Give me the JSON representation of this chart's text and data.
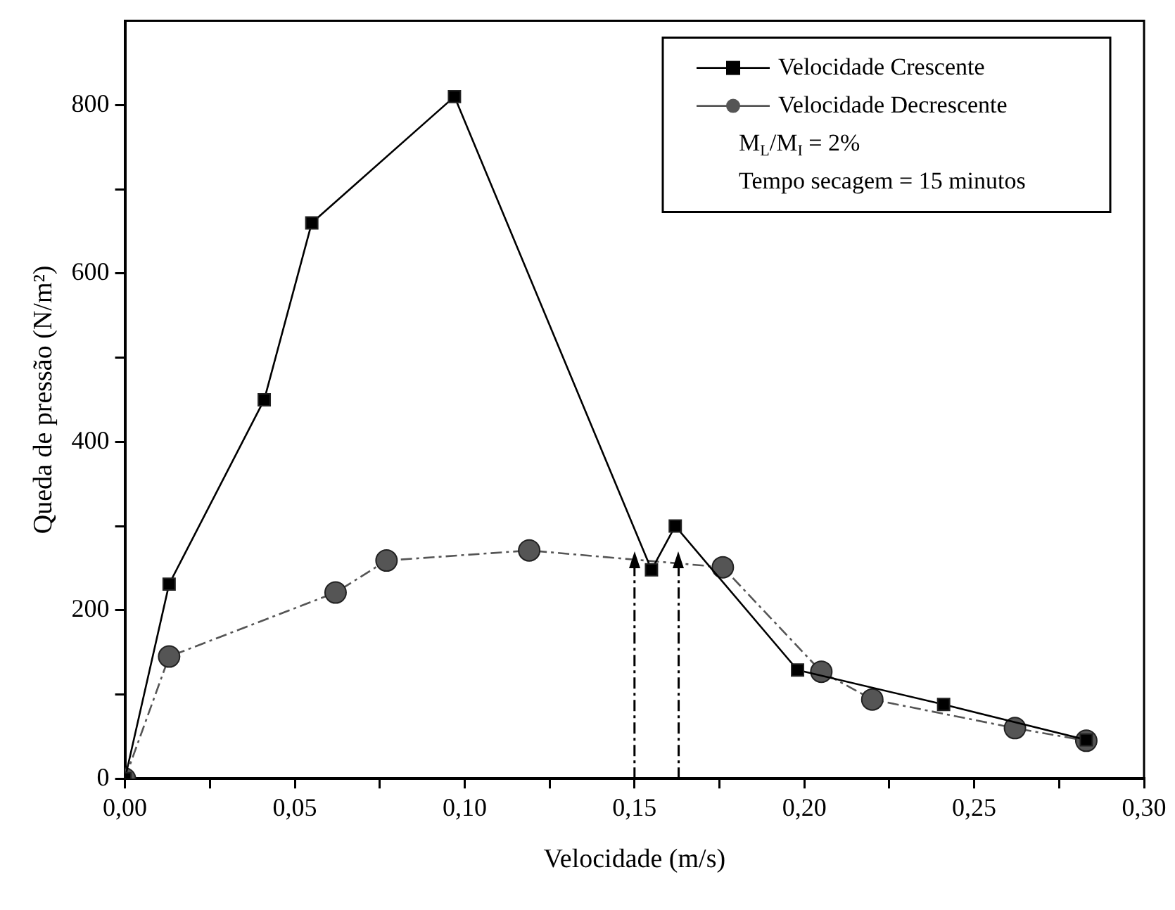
{
  "chart_data": {
    "type": "line",
    "xlabel": "Velocidade (m/s)",
    "ylabel": "Queda de pressão (N/m²)",
    "xlim": [
      0,
      0.3
    ],
    "xticks": [
      {
        "value": 0,
        "label": "0,00"
      },
      {
        "value": 0.025,
        "label": null
      },
      {
        "value": 0.05,
        "label": "0,05"
      },
      {
        "value": 0.075,
        "label": null
      },
      {
        "value": 0.1,
        "label": "0,10"
      },
      {
        "value": 0.125,
        "label": null
      },
      {
        "value": 0.15,
        "label": "0,15"
      },
      {
        "value": 0.175,
        "label": null
      },
      {
        "value": 0.2,
        "label": "0,20"
      },
      {
        "value": 0.225,
        "label": null
      },
      {
        "value": 0.25,
        "label": "0,25"
      },
      {
        "value": 0.275,
        "label": null
      },
      {
        "value": 0.3,
        "label": "0,30"
      }
    ],
    "ylim": [
      0,
      900
    ],
    "yticks": [
      0,
      {
        "value": 100,
        "label": null
      },
      200,
      {
        "value": 300,
        "label": null
      },
      400,
      {
        "value": 500,
        "label": null
      },
      600,
      {
        "value": 700,
        "label": null
      },
      800
    ],
    "grid": false,
    "legend": "top right",
    "series": [
      {
        "name": "Velocidade Crescente",
        "color": "#000000",
        "marker": "square",
        "line_style": "solid",
        "x": [
          0,
          0.013,
          0.041,
          0.055,
          0.097,
          0.155,
          0.162,
          0.198,
          0.241,
          0.283
        ],
        "values": [
          0,
          231,
          450,
          660,
          810,
          248,
          300,
          129,
          88,
          46
        ]
      },
      {
        "name": "Velocidade Decrescente",
        "color": "#555555",
        "marker": "circle",
        "line_style": "dashed",
        "x": [
          0,
          0.013,
          0.062,
          0.077,
          0.119,
          0.176,
          0.205,
          0.22,
          0.262,
          0.283
        ],
        "values": [
          0,
          145,
          221,
          259,
          271,
          251,
          127,
          94,
          60,
          45
        ]
      }
    ],
    "ref_lines": [
      {
        "axis": "x",
        "value": 0.15,
        "line_style": "dashed",
        "color": "#000000"
      },
      {
        "axis": "x",
        "value": 0.163,
        "line_style": "dashed",
        "color": "#000000"
      }
    ],
    "annotations": [
      "M$_{L}$/M$_{I}$ = 2%",
      "Tempo secagem = 15 minutos"
    ]
  }
}
